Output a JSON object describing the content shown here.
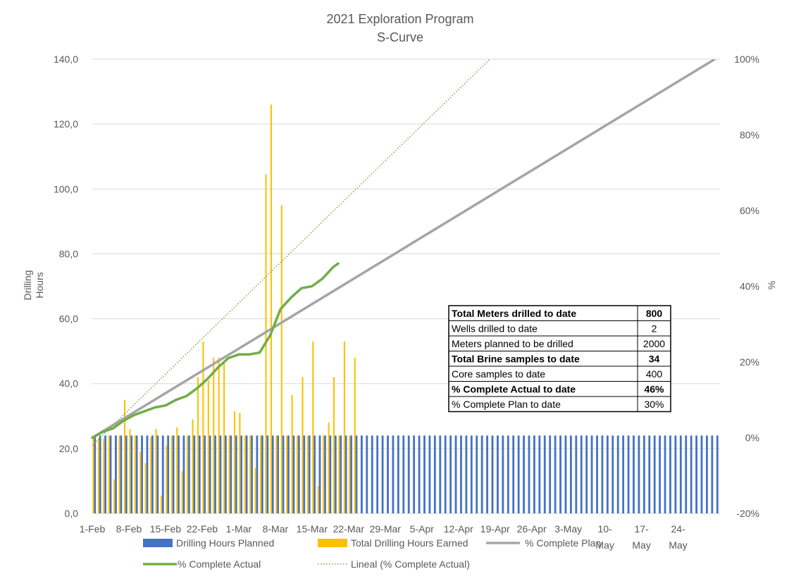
{
  "chart_data": {
    "type": "bar",
    "title": "2021 Exploration Program",
    "subtitle": "S-Curve",
    "ylabel_left": [
      "Drilling",
      "Hours"
    ],
    "ylabel_right": "%",
    "y_left": {
      "min": 0,
      "max": 140,
      "ticks": [
        "0,0",
        "20,0",
        "40,0",
        "60,0",
        "80,0",
        "100,0",
        "120,0",
        "140,0"
      ]
    },
    "y_right": {
      "min": -20,
      "max": 100,
      "ticks": [
        "-20%",
        "0%",
        "20%",
        "40%",
        "60%",
        "80%",
        "100%"
      ]
    },
    "x_axis": {
      "start_date": "2021-02-01",
      "end_date": "2021-05-31",
      "tick_labels": [
        [
          "1-Feb"
        ],
        [
          "8-Feb"
        ],
        [
          "15-Feb"
        ],
        [
          "22-Feb"
        ],
        [
          "1-Mar"
        ],
        [
          "8-Mar"
        ],
        [
          "15-Mar"
        ],
        [
          "22-Mar"
        ],
        [
          "29-Mar"
        ],
        [
          "5-Apr"
        ],
        [
          "12-Apr"
        ],
        [
          "19-Apr"
        ],
        [
          "26-Apr"
        ],
        [
          "3-May"
        ],
        [
          "10-",
          "May"
        ],
        [
          "17-",
          "May"
        ],
        [
          "24-",
          "May"
        ]
      ]
    },
    "grid": true,
    "colors": {
      "planned": "#4472C4",
      "earned": "#FFC000",
      "plan_line": "#A5A5A5",
      "actual_line": "#70AD47",
      "trend_line": "#70AD47",
      "grid": "#D9D9D9",
      "text": "#595959"
    },
    "series": [
      {
        "name": "Drilling Hours Planned",
        "type": "bar",
        "axis": "left",
        "value_each_day": 24,
        "first_date": "2021-02-01",
        "last_date": "2021-05-31"
      },
      {
        "name": "Total Drilling Hours Earned",
        "type": "bar",
        "axis": "left",
        "values": [
          24,
          23,
          23,
          24,
          10.5,
          24,
          35,
          26,
          24,
          19,
          15.5,
          23.5,
          26,
          5.5,
          21,
          24,
          26.5,
          13,
          24,
          29,
          42,
          53,
          41,
          48,
          48,
          47,
          24,
          31.5,
          31,
          24,
          24,
          14,
          24,
          104.5,
          126,
          24,
          95,
          24,
          36.5,
          24,
          42,
          24,
          53,
          8.5,
          24,
          28,
          42,
          24,
          53,
          24,
          48
        ]
      },
      {
        "name": "% Complete Plan",
        "type": "line",
        "axis": "right",
        "points": [
          [
            0,
            0
          ],
          [
            119,
            100
          ]
        ]
      },
      {
        "name": "% Complete Actual",
        "type": "line",
        "axis": "right",
        "points": [
          [
            0,
            0
          ],
          [
            2,
            1.5
          ],
          [
            4,
            2.5
          ],
          [
            6,
            4.5
          ],
          [
            8,
            6
          ],
          [
            10,
            7
          ],
          [
            12,
            8
          ],
          [
            14,
            8.5
          ],
          [
            16,
            10
          ],
          [
            18,
            11
          ],
          [
            20,
            13
          ],
          [
            22,
            15.5
          ],
          [
            24,
            18.5
          ],
          [
            26,
            21
          ],
          [
            28,
            22
          ],
          [
            30,
            22
          ],
          [
            32,
            22.5
          ],
          [
            34,
            27
          ],
          [
            36,
            34
          ],
          [
            38,
            37
          ],
          [
            40,
            39.5
          ],
          [
            42,
            40
          ],
          [
            44,
            42
          ],
          [
            46,
            45
          ],
          [
            47,
            46
          ]
        ]
      },
      {
        "name": "Lineal (% Complete Actual)",
        "type": "trend",
        "axis": "right",
        "points": [
          [
            0,
            -2
          ],
          [
            76,
            100
          ]
        ]
      }
    ],
    "legend": {
      "placement": "bottom",
      "items": [
        {
          "label": "Drilling Hours Planned",
          "kind": "box",
          "color": "#4472C4"
        },
        {
          "label": "Total Drilling Hours Earned",
          "kind": "box",
          "color": "#FFC000"
        },
        {
          "label": "% Complete Plan",
          "kind": "line",
          "color": "#A5A5A5"
        },
        {
          "label": "% Complete Actual",
          "kind": "line",
          "color": "#70AD47"
        },
        {
          "label": "Lineal (% Complete Actual)",
          "kind": "dotted",
          "color": "#70AD47"
        }
      ]
    },
    "summary_table": [
      {
        "label": "Total Meters drilled to date",
        "value": "800",
        "bold": true
      },
      {
        "label": "Wells drilled to date",
        "value": "2",
        "bold": false
      },
      {
        "label": "Meters planned to be drilled",
        "value": "2000",
        "bold": false
      },
      {
        "label": "Total Brine samples to date",
        "value": "34",
        "bold": true
      },
      {
        "label": "Core samples to date",
        "value": "400",
        "bold": false
      },
      {
        "label": "% Complete Actual to date",
        "value": "46%",
        "bold": true
      },
      {
        "label": "% Complete Plan to date",
        "value": "30%",
        "bold": false
      }
    ]
  }
}
